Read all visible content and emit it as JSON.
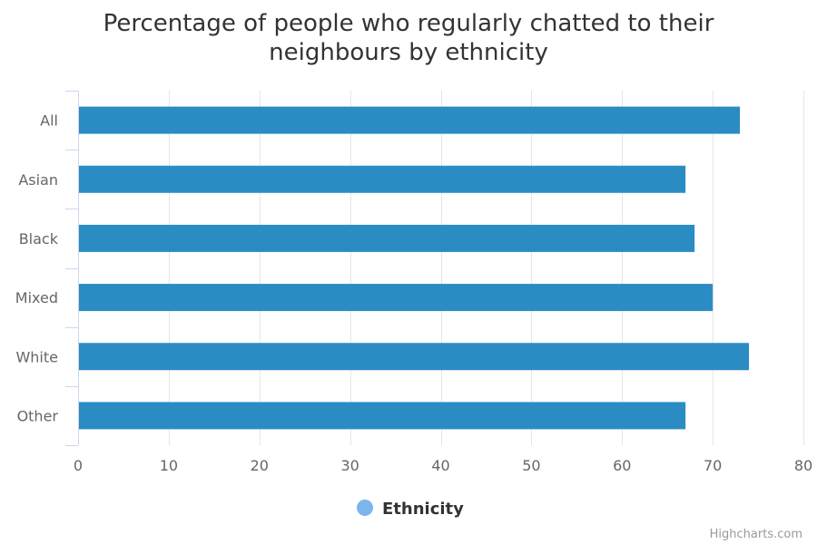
{
  "chart_data": {
    "type": "bar",
    "orientation": "horizontal",
    "title_lines": [
      "Percentage of people who regularly chatted to their",
      "neighbours by ethnicity"
    ],
    "categories": [
      "All",
      "Asian",
      "Black",
      "Mixed",
      "White",
      "Other"
    ],
    "series": [
      {
        "name": "Ethnicity",
        "values": [
          73,
          67,
          68,
          70,
          74,
          67
        ]
      }
    ],
    "xlim": [
      0,
      80
    ],
    "x_ticks": [
      "0",
      "10",
      "20",
      "30",
      "40",
      "50",
      "60",
      "70",
      "80"
    ],
    "grid": true,
    "legend_position": "bottom-center"
  },
  "colors": {
    "bar": "#2b8cc4",
    "legend_marker": "#7cb5ec",
    "grid": "#e6e6e6",
    "axis": "#ccd6eb"
  },
  "credits": "Highcharts.com"
}
